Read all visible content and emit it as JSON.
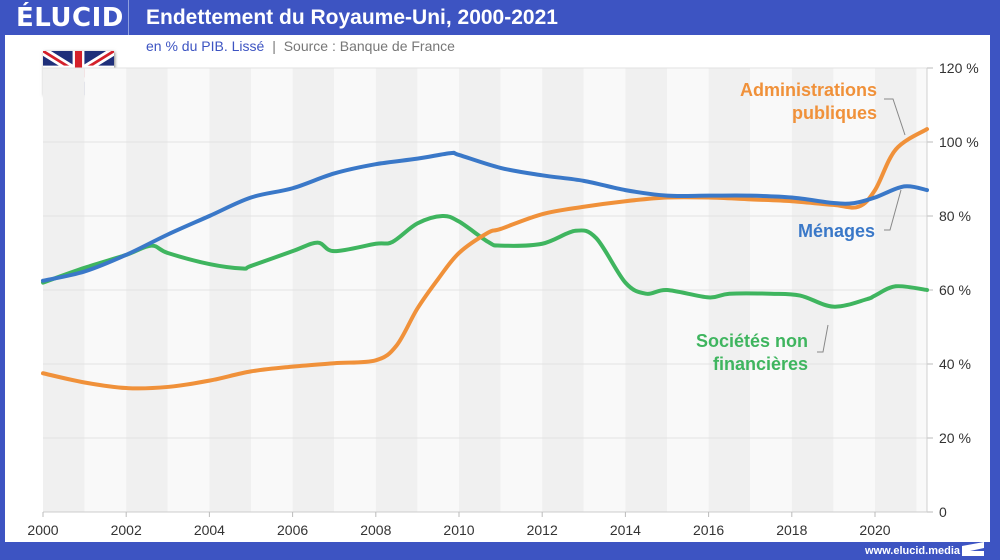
{
  "header": {
    "logo": "ÉLUCID",
    "title": "Endettement du Royaume-Uni, 2000-2021",
    "subtitle_unit": "en % du PIB. Lissé",
    "subtitle_sep": "|",
    "subtitle_source": "Source : Banque de France"
  },
  "footer": {
    "url": "www.elucid.media"
  },
  "flag": {
    "icon": "uk-flag-icon",
    "colors": {
      "blue": "#1f2f7a",
      "red": "#d4202a",
      "white": "#ffffff"
    }
  },
  "chart_data": {
    "type": "line",
    "title": "Endettement du Royaume-Uni, 2000-2021",
    "subtitle": "en % du PIB. Lissé | Source : Banque de France",
    "xlabel": "",
    "ylabel": "",
    "xlim": [
      2000,
      2021.25
    ],
    "ylim": [
      0,
      120
    ],
    "x_ticks": [
      2000,
      2002,
      2004,
      2006,
      2008,
      2010,
      2012,
      2014,
      2016,
      2018,
      2020
    ],
    "y_ticks": [
      0,
      20,
      40,
      60,
      80,
      100,
      120
    ],
    "y_tick_labels": [
      "0",
      "20 %",
      "40 %",
      "60 %",
      "80 %",
      "100 %",
      "120 %"
    ],
    "y_axis_position": "right",
    "grid": true,
    "alternating_year_bands": true,
    "series": [
      {
        "name": "Ménages",
        "label_lines": [
          "Ménages"
        ],
        "color": "#3a78c8",
        "x": [
          2000,
          2001,
          2002,
          2003,
          2004,
          2005,
          2006,
          2007,
          2008,
          2009,
          2009.8,
          2010,
          2011,
          2012,
          2013,
          2014,
          2015,
          2016,
          2017,
          2018,
          2019,
          2019.5,
          2020,
          2020.7,
          2021.25
        ],
        "values": [
          62.5,
          65,
          69.5,
          75,
          80,
          85,
          87.5,
          91.5,
          94,
          95.5,
          97,
          96.5,
          93,
          91,
          89.5,
          87,
          85.5,
          85.5,
          85.5,
          85,
          83.5,
          83.5,
          85,
          88,
          87
        ]
      },
      {
        "name": "Sociétés non financières",
        "label_lines": [
          "Sociétés non",
          "financières"
        ],
        "color": "#3fb55f",
        "x": [
          2000,
          2001,
          2002,
          2002.6,
          2003,
          2004,
          2004.8,
          2005,
          2006,
          2006.6,
          2007,
          2008,
          2008.4,
          2009,
          2009.6,
          2010,
          2010.7,
          2011,
          2012,
          2012.8,
          2013.3,
          2014,
          2014.5,
          2015,
          2016,
          2016.5,
          2017.5,
          2018.2,
          2019,
          2019.8,
          2020,
          2020.5,
          2021.25
        ],
        "values": [
          62,
          66,
          69.5,
          72,
          70,
          67,
          65.8,
          66.5,
          70.5,
          72.8,
          70.5,
          72.5,
          73,
          78,
          80,
          78.5,
          73,
          72,
          72.5,
          76,
          74,
          62,
          59,
          60,
          58,
          59,
          59,
          58.5,
          55.5,
          57.5,
          58.5,
          61,
          60
        ]
      },
      {
        "name": "Administrations publiques",
        "label_lines": [
          "Administrations",
          "publiques"
        ],
        "color": "#f0913a",
        "x": [
          2000,
          2001,
          2002,
          2003,
          2004,
          2005,
          2006,
          2007,
          2008,
          2008.5,
          2009,
          2009.5,
          2010,
          2010.7,
          2011,
          2012,
          2013,
          2014,
          2015,
          2016,
          2017,
          2018,
          2019,
          2019.6,
          2020,
          2020.5,
          2021.25
        ],
        "values": [
          37.5,
          35,
          33.5,
          33.8,
          35.5,
          38,
          39.3,
          40.2,
          41,
          45,
          55,
          63,
          70,
          75.5,
          76.5,
          80.5,
          82.5,
          84,
          85,
          85,
          84.5,
          84,
          83,
          82.5,
          87,
          98,
          103.5
        ]
      }
    ]
  }
}
